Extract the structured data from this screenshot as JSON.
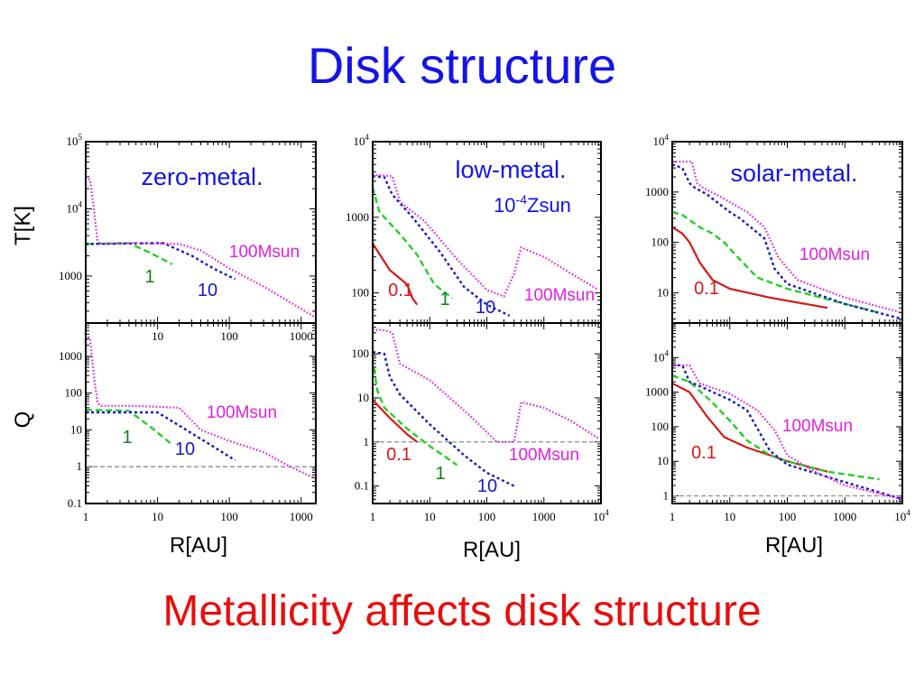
{
  "slide": {
    "title": "Disk structure",
    "footer": "Metallicity affects disk structure",
    "ylabel_top": "T[K]",
    "ylabel_bottom": "Q",
    "xlabel": "R[AU]"
  },
  "colors": {
    "title": "#1414e6",
    "footer": "#e60e0e",
    "m0_1": "#d81818",
    "m1": "#22d022",
    "m10": "#1818c8",
    "m100": "#e020e0",
    "refline": "#8c8c8c"
  },
  "chart_data": [
    {
      "type": "line",
      "panel": "zero-metal T",
      "log_axes": true,
      "xlim": [
        1,
        1600
      ],
      "ylim": [
        200,
        100000
      ],
      "xticks": [
        1,
        10,
        100,
        1000
      ],
      "yticks": [
        1000,
        10000,
        100000
      ],
      "annotation": "zero-metal.",
      "labels": [
        {
          "text": "100Msun",
          "series": "100Msun"
        },
        {
          "text": "1",
          "series": "1"
        },
        {
          "text": "10",
          "series": "10"
        }
      ],
      "series": [
        {
          "name": "1",
          "x": [
            1,
            4,
            8,
            16
          ],
          "y": [
            3000,
            3100,
            2200,
            1500
          ]
        },
        {
          "name": "10",
          "x": [
            1,
            12,
            30,
            60,
            120
          ],
          "y": [
            3000,
            3100,
            2000,
            1300,
            900
          ]
        },
        {
          "name": "100Msun",
          "x": [
            1,
            1.15,
            1.3,
            1.45,
            1.6,
            5,
            20,
            40,
            100,
            300,
            600,
            1500
          ],
          "y": [
            30000,
            27000,
            10000,
            3500,
            3000,
            3100,
            3000,
            2400,
            1300,
            700,
            450,
            250
          ]
        }
      ]
    },
    {
      "type": "line",
      "panel": "zero-metal Q",
      "log_axes": true,
      "xlim": [
        1,
        1600
      ],
      "ylim": [
        0.1,
        8000
      ],
      "xticks": [
        1,
        10,
        100,
        1000
      ],
      "yticks": [
        0.1,
        1,
        10,
        100,
        1000
      ],
      "reference_y": 1,
      "labels": [
        {
          "text": "100Msun",
          "series": "100Msun"
        },
        {
          "text": "1",
          "series": "1"
        },
        {
          "text": "10",
          "series": "10"
        }
      ],
      "series": [
        {
          "name": "1",
          "x": [
            1,
            4,
            8,
            16
          ],
          "y": [
            35,
            33,
            12,
            4
          ]
        },
        {
          "name": "10",
          "x": [
            1,
            10,
            25,
            60,
            120
          ],
          "y": [
            30,
            30,
            10,
            3.5,
            1.5
          ]
        },
        {
          "name": "100Msun",
          "x": [
            1,
            1.15,
            1.3,
            1.45,
            1.6,
            5,
            20,
            40,
            100,
            300,
            700,
            1500
          ],
          "y": [
            4000,
            3000,
            300,
            60,
            45,
            45,
            40,
            10,
            5,
            2.5,
            1,
            0.5
          ]
        }
      ]
    },
    {
      "type": "line",
      "panel": "low-metal T",
      "log_axes": true,
      "xlim": [
        1,
        10000
      ],
      "ylim": [
        40,
        10000
      ],
      "xticks": [],
      "yticks": [
        100,
        1000,
        10000
      ],
      "annotation": "low-metal.",
      "annotation_sub": "10-4Zsun",
      "labels": [
        {
          "text": "0.1",
          "series": "0.1"
        },
        {
          "text": "1",
          "series": "1"
        },
        {
          "text": "10",
          "series": "10"
        },
        {
          "text": "100Msun",
          "series": "100Msun"
        }
      ],
      "series": [
        {
          "name": "0.1",
          "x": [
            1,
            2,
            4,
            5,
            6
          ],
          "y": [
            450,
            200,
            130,
            85,
            70
          ]
        },
        {
          "name": "1",
          "x": [
            1,
            1.3,
            1.6,
            3,
            6,
            12,
            25
          ],
          "y": [
            2500,
            1200,
            1000,
            600,
            320,
            130,
            85
          ]
        },
        {
          "name": "10",
          "x": [
            1,
            1.6,
            2.2,
            5,
            15,
            40,
            100,
            250
          ],
          "y": [
            3500,
            3400,
            2000,
            1000,
            350,
            120,
            70,
            50
          ]
        },
        {
          "name": "100Msun",
          "x": [
            1,
            1.3,
            2.2,
            3,
            8,
            30,
            100,
            200,
            300,
            400,
            1000,
            3000,
            9000
          ],
          "y": [
            3600,
            3600,
            3500,
            1600,
            900,
            280,
            110,
            90,
            180,
            400,
            300,
            180,
            110
          ]
        }
      ]
    },
    {
      "type": "line",
      "panel": "low-metal Q",
      "log_axes": true,
      "xlim": [
        1,
        10000
      ],
      "ylim": [
        0.04,
        500
      ],
      "xticks": [
        1,
        10,
        100,
        1000,
        10000
      ],
      "yticks": [
        0.1,
        1,
        10,
        100
      ],
      "reference_y": 1,
      "labels": [
        {
          "text": "0.1",
          "series": "0.1"
        },
        {
          "text": "1",
          "series": "1"
        },
        {
          "text": "10",
          "series": "10"
        },
        {
          "text": "100Msun",
          "series": "100Msun"
        }
      ],
      "series": [
        {
          "name": "0.1",
          "x": [
            1,
            2,
            4,
            6
          ],
          "y": [
            9,
            3.5,
            1.5,
            1
          ]
        },
        {
          "name": "1",
          "x": [
            1,
            1.2,
            1.6,
            4,
            10,
            30
          ],
          "y": [
            80,
            15,
            6,
            2,
            0.8,
            0.3
          ]
        },
        {
          "name": "10",
          "x": [
            1,
            1.6,
            2,
            3,
            10,
            40,
            100,
            300
          ],
          "y": [
            110,
            100,
            30,
            12,
            2.5,
            0.5,
            0.2,
            0.1
          ]
        },
        {
          "name": "100Msun",
          "x": [
            1,
            1.5,
            2.2,
            3,
            10,
            50,
            150,
            300,
            400,
            1000,
            3000,
            9000
          ],
          "y": [
            350,
            350,
            300,
            60,
            25,
            4,
            1,
            1,
            8,
            6,
            3,
            1.2
          ]
        }
      ]
    },
    {
      "type": "line",
      "panel": "solar-metal T",
      "log_axes": true,
      "xlim": [
        1,
        10000
      ],
      "ylim": [
        2.5,
        10000
      ],
      "xticks": [],
      "yticks": [
        10,
        100,
        1000,
        10000
      ],
      "annotation": "solar-metal.",
      "labels": [
        {
          "text": "100Msun",
          "series": "100Msun"
        },
        {
          "text": "0.1",
          "series": "0.1"
        }
      ],
      "series": [
        {
          "name": "0.1",
          "x": [
            1,
            1.5,
            2,
            3,
            5,
            10,
            50,
            500
          ],
          "y": [
            200,
            150,
            100,
            40,
            18,
            12,
            8,
            5
          ]
        },
        {
          "name": "1",
          "x": [
            1,
            1.5,
            3,
            5,
            8,
            12,
            30,
            100,
            1000,
            4000
          ],
          "y": [
            400,
            350,
            200,
            150,
            100,
            60,
            20,
            12,
            6,
            4
          ]
        },
        {
          "name": "10",
          "x": [
            1,
            1.5,
            2,
            2.5,
            4,
            10,
            15,
            40,
            60,
            100,
            1000,
            10000
          ],
          "y": [
            3500,
            3000,
            1500,
            1200,
            900,
            400,
            300,
            120,
            30,
            15,
            6,
            3
          ]
        },
        {
          "name": "100Msun",
          "x": [
            1,
            2.2,
            2.7,
            3.5,
            7,
            20,
            40,
            70,
            150,
            1000,
            10000
          ],
          "y": [
            4000,
            4000,
            1500,
            1200,
            800,
            400,
            200,
            50,
            18,
            8,
            4
          ]
        }
      ]
    },
    {
      "type": "line",
      "panel": "solar-metal Q",
      "log_axes": true,
      "xlim": [
        1,
        10000
      ],
      "ylim": [
        0.6,
        100000
      ],
      "xticks": [
        1,
        10,
        100,
        1000,
        10000
      ],
      "yticks": [
        1,
        10,
        100,
        1000,
        10000
      ],
      "reference_y": 1,
      "labels": [
        {
          "text": "100Msun",
          "series": "100Msun"
        },
        {
          "text": "0.1",
          "series": "0.1"
        }
      ],
      "series": [
        {
          "name": "0.1",
          "x": [
            1,
            2,
            4,
            8,
            20,
            50,
            100,
            500
          ],
          "y": [
            1800,
            1000,
            200,
            50,
            25,
            15,
            10,
            5
          ]
        },
        {
          "name": "1",
          "x": [
            1,
            2,
            5,
            10,
            20,
            50,
            100,
            500,
            4000
          ],
          "y": [
            3000,
            2000,
            500,
            150,
            40,
            15,
            10,
            5,
            3
          ]
        },
        {
          "name": "10",
          "x": [
            1,
            1.5,
            2,
            3,
            10,
            20,
            50,
            100,
            1000,
            10000
          ],
          "y": [
            6000,
            6000,
            2000,
            1500,
            600,
            300,
            20,
            8,
            2.5,
            0.8
          ]
        },
        {
          "name": "100Msun",
          "x": [
            1,
            2,
            2.5,
            3,
            10,
            30,
            60,
            100,
            300,
            1000,
            10000
          ],
          "y": [
            6000,
            6000,
            3000,
            1800,
            900,
            300,
            80,
            15,
            5,
            2,
            0.8
          ]
        }
      ]
    }
  ]
}
